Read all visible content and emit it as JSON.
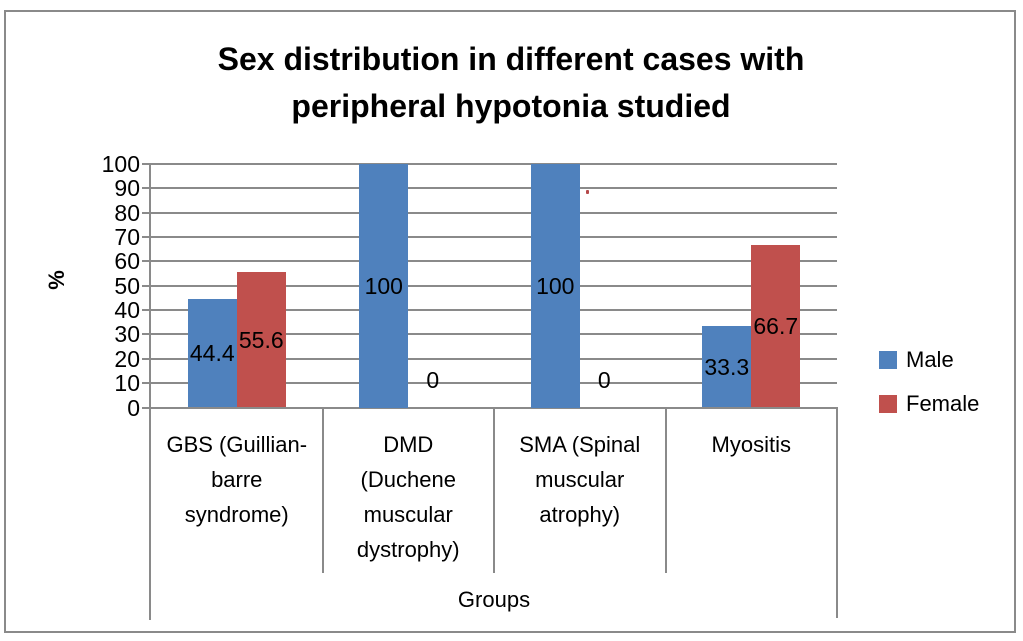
{
  "chart_data": {
    "type": "bar",
    "title": "Sex distribution in different cases with peripheral hypotonia studied",
    "xlabel": "Groups",
    "ylabel": "%",
    "ylim": [
      0,
      100
    ],
    "yticks": [
      0,
      10,
      20,
      30,
      40,
      50,
      60,
      70,
      80,
      90,
      100
    ],
    "grid": true,
    "legend_position": "right",
    "categories": [
      "GBS (Guillian-barre syndrome)",
      "DMD (Duchene muscular dystrophy)",
      "SMA (Spinal muscular atrophy)",
      "Myositis"
    ],
    "category_labels_wrapped": [
      "GBS (Guillian-\nbarre\nsyndrome)",
      "DMD\n(Duchene\nmuscular\ndystrophy)",
      "SMA (Spinal\nmuscular\natrophy)",
      "Myositis"
    ],
    "series": [
      {
        "name": "Male",
        "color": "#4F81BD",
        "values": [
          44.4,
          100,
          100,
          33.3
        ],
        "labels": [
          "44.4",
          "100",
          "100",
          "33.3"
        ]
      },
      {
        "name": "Female",
        "color": "#C0504D",
        "values": [
          55.6,
          0,
          0,
          66.7
        ],
        "labels": [
          "55.6",
          "0",
          "0",
          "66.7"
        ]
      }
    ],
    "colors": {
      "gridline": "#8a8a8a",
      "axis": "#8a8a8a",
      "frame_border": "#8a8a8a",
      "text": "#000000"
    }
  }
}
